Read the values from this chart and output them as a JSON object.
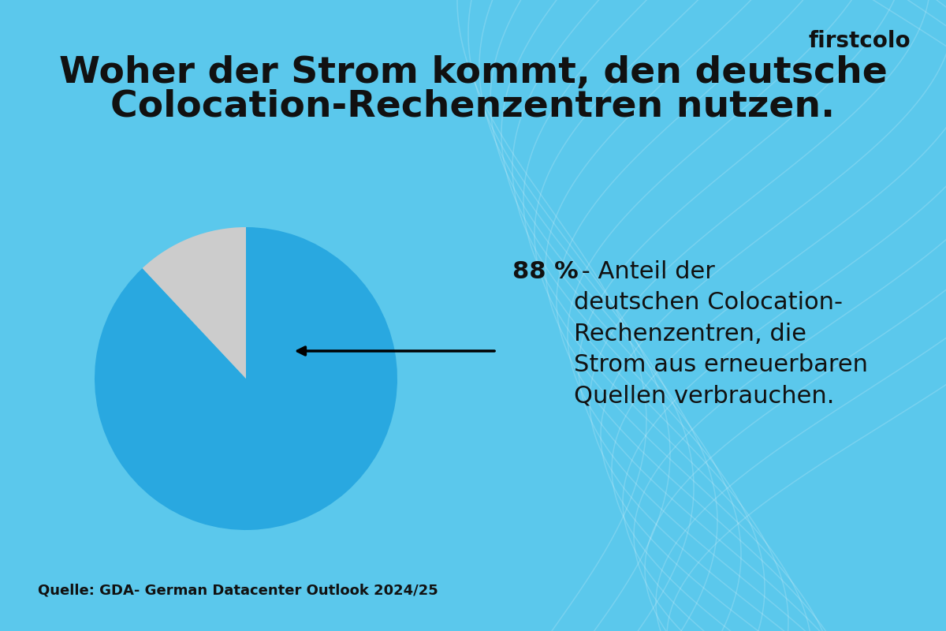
{
  "title_line1": "Woher der Strom kommt, den deutsche",
  "title_line2": "Colocation-Rechenzentren nutzen.",
  "background_color": "#5BC8EC",
  "pie_values": [
    88,
    12
  ],
  "pie_colors": [
    "#29A8E0",
    "#CCCCCC"
  ],
  "pie_startangle": 90,
  "annotation_bold": "88 %",
  "annotation_rest": " - Anteil der\ndeutschen Colocation-\nRechenzentren, die\nStrom aus erneuerbaren\nQuellen verbrauchen.",
  "source_text": "Quelle: GDA- German Datacenter Outlook 2024/25",
  "brand_text": "firstcolo",
  "brand_color": "#111111",
  "title_color": "#111111",
  "annotation_color": "#111111",
  "source_color": "#111111",
  "wave_color": "#FFFFFF",
  "wave_alpha": 0.18,
  "title_fontsize": 34,
  "brand_fontsize": 20,
  "annotation_bold_fontsize": 22,
  "annotation_rest_fontsize": 22,
  "source_fontsize": 13
}
